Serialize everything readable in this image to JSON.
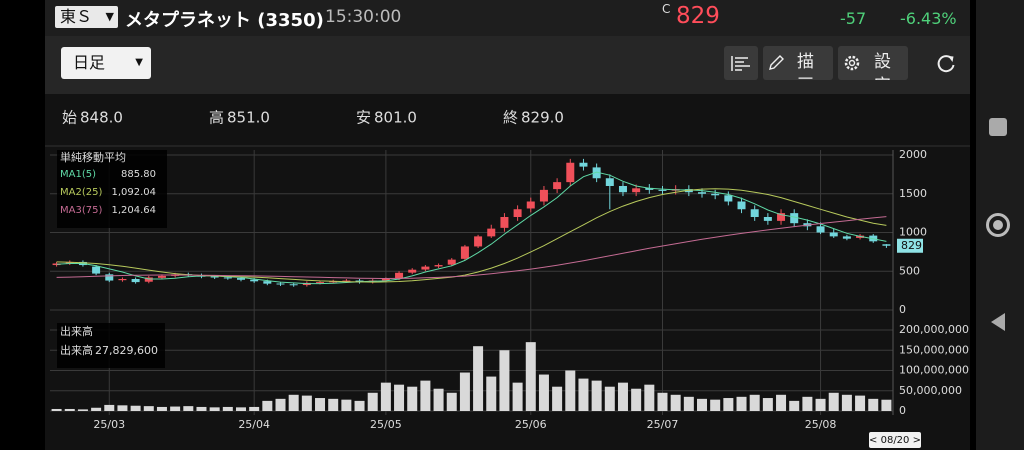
{
  "header": {
    "exchange": "東Ｓ",
    "name": "メタプラネット (3350)",
    "time": "15:30:00",
    "price_flag": "C",
    "price": "829",
    "change": "-57",
    "change_pct": "-6.43%"
  },
  "toolbar": {
    "period": "日足",
    "draw": "描画",
    "settings": "設定"
  },
  "chart_data": {
    "type": "candlestick",
    "ohlc": {
      "labels": [
        "始",
        "高",
        "安",
        "終"
      ],
      "values": [
        848,
        851,
        801,
        829
      ],
      "value_labels": [
        "848.0",
        "851.0",
        "801.0",
        "829.0"
      ]
    },
    "categories": [
      null,
      null,
      null,
      null,
      "25/03",
      null,
      null,
      null,
      null,
      null,
      null,
      null,
      null,
      null,
      null,
      "25/04",
      null,
      null,
      null,
      null,
      null,
      null,
      null,
      null,
      null,
      "25/05",
      null,
      null,
      null,
      null,
      null,
      null,
      null,
      null,
      null,
      null,
      "25/06",
      null,
      null,
      null,
      null,
      null,
      null,
      null,
      null,
      null,
      "25/07",
      null,
      null,
      null,
      null,
      null,
      null,
      null,
      null,
      null,
      null,
      null,
      "25/08",
      null,
      null,
      null,
      null,
      null
    ],
    "open": [
      580,
      600,
      620,
      560,
      460,
      385,
      400,
      365,
      415,
      440,
      462,
      450,
      432,
      420,
      412,
      392,
      372,
      342,
      332,
      322,
      350,
      362,
      372,
      380,
      362,
      382,
      405,
      482,
      522,
      562,
      585,
      660,
      820,
      950,
      1060,
      1200,
      1310,
      1400,
      1560,
      1650,
      1900,
      1840,
      1700,
      1600,
      1520,
      1575,
      1550,
      1540,
      1560,
      1520,
      1500,
      1480,
      1400,
      1300,
      1200,
      1150,
      1250,
      1120,
      1080,
      1000,
      950,
      930,
      960,
      848
    ],
    "high": [
      620,
      640,
      640,
      580,
      480,
      420,
      420,
      440,
      460,
      480,
      482,
      470,
      452,
      440,
      432,
      412,
      392,
      362,
      352,
      370,
      380,
      390,
      400,
      400,
      400,
      420,
      500,
      540,
      580,
      600,
      670,
      840,
      970,
      1100,
      1250,
      1350,
      1450,
      1600,
      1700,
      1950,
      1950,
      1890,
      1750,
      1650,
      1620,
      1625,
      1600,
      1610,
      1610,
      1570,
      1550,
      1530,
      1450,
      1350,
      1250,
      1300,
      1300,
      1170,
      1130,
      1050,
      970,
      980,
      980,
      851
    ],
    "low": [
      560,
      580,
      560,
      450,
      360,
      365,
      340,
      345,
      395,
      420,
      430,
      410,
      400,
      390,
      370,
      350,
      320,
      310,
      300,
      302,
      330,
      342,
      352,
      340,
      342,
      362,
      385,
      462,
      502,
      542,
      565,
      640,
      800,
      930,
      1010,
      1150,
      1260,
      1350,
      1510,
      1600,
      1800,
      1650,
      1300,
      1470,
      1470,
      1500,
      1490,
      1490,
      1470,
      1450,
      1430,
      1350,
      1250,
      1150,
      1100,
      1100,
      1070,
      1030,
      980,
      930,
      900,
      910,
      866,
      801
    ],
    "close": [
      600,
      620,
      580,
      470,
      380,
      400,
      360,
      420,
      440,
      460,
      450,
      430,
      420,
      410,
      390,
      370,
      340,
      330,
      320,
      350,
      360,
      370,
      380,
      360,
      380,
      400,
      480,
      520,
      560,
      580,
      650,
      820,
      950,
      1050,
      1200,
      1300,
      1400,
      1550,
      1650,
      1900,
      1850,
      1700,
      1600,
      1520,
      1570,
      1550,
      1540,
      1560,
      1520,
      1500,
      1480,
      1400,
      1300,
      1200,
      1150,
      1250,
      1120,
      1080,
      1000,
      950,
      920,
      960,
      886,
      829
    ],
    "volume": [
      5000000,
      5000000,
      4000000,
      8000000,
      15000000,
      14000000,
      13000000,
      12000000,
      10000000,
      11000000,
      12000000,
      10000000,
      9000000,
      10000000,
      9000000,
      10000000,
      25000000,
      30000000,
      40000000,
      38000000,
      32000000,
      30000000,
      28000000,
      25000000,
      45000000,
      70000000,
      65000000,
      60000000,
      75000000,
      55000000,
      45000000,
      95000000,
      160000000,
      85000000,
      150000000,
      70000000,
      170000000,
      90000000,
      60000000,
      100000000,
      80000000,
      75000000,
      60000000,
      70000000,
      55000000,
      65000000,
      45000000,
      40000000,
      35000000,
      30000000,
      28000000,
      32000000,
      35000000,
      40000000,
      32000000,
      40000000,
      25000000,
      35000000,
      30000000,
      45000000,
      40000000,
      38000000,
      30000000,
      27829600
    ],
    "up_color": "#f0505a",
    "down_color": "#72d6dc",
    "volume_color": "#d9d9d9",
    "ylim": [
      0,
      2000
    ],
    "yticks": [
      0,
      500,
      1000,
      1500,
      2000
    ],
    "ma_title": "単純移動平均",
    "series": [
      {
        "name": "MA1(5)",
        "color": "#5fd9a6",
        "current": {
          "value": 885.8,
          "label": "885.80"
        },
        "values": [
          590,
          600,
          600,
          570,
          530,
          490,
          440,
          400,
          400,
          410,
          430,
          440,
          440,
          430,
          420,
          400,
          380,
          360,
          350,
          340,
          340,
          345,
          355,
          365,
          370,
          375,
          400,
          440,
          490,
          530,
          570,
          640,
          740,
          850,
          980,
          1100,
          1220,
          1330,
          1450,
          1600,
          1720,
          1780,
          1740,
          1660,
          1600,
          1570,
          1560,
          1550,
          1550,
          1540,
          1520,
          1490,
          1440,
          1370,
          1290,
          1230,
          1200,
          1160,
          1110,
          1050,
          990,
          950,
          920,
          885.8
        ]
      },
      {
        "name": "MA2(25)",
        "color": "#b7c95c",
        "current": {
          "value": 1092.04,
          "label": "1,092.04"
        },
        "values": [
          620,
          615,
          610,
          600,
          585,
          565,
          540,
          515,
          490,
          470,
          455,
          445,
          440,
          435,
          430,
          425,
          415,
          405,
          395,
          385,
          375,
          370,
          365,
          362,
          360,
          362,
          368,
          378,
          392,
          408,
          425,
          450,
          490,
          540,
          600,
          670,
          750,
          830,
          920,
          1010,
          1100,
          1190,
          1270,
          1340,
          1400,
          1450,
          1490,
          1520,
          1545,
          1560,
          1565,
          1560,
          1545,
          1520,
          1490,
          1450,
          1400,
          1350,
          1300,
          1250,
          1200,
          1160,
          1120,
          1092.04
        ]
      },
      {
        "name": "MA3(75)",
        "color": "#c46b93",
        "current": {
          "value": 1204.64,
          "label": "1,204.64"
        },
        "values": [
          420,
          425,
          430,
          435,
          440,
          445,
          448,
          450,
          452,
          452,
          450,
          448,
          446,
          444,
          442,
          440,
          437,
          434,
          430,
          426,
          422,
          418,
          414,
          410,
          408,
          407,
          408,
          410,
          415,
          420,
          428,
          438,
          452,
          468,
          486,
          506,
          528,
          552,
          578,
          606,
          636,
          668,
          700,
          732,
          764,
          796,
          826,
          856,
          884,
          912,
          938,
          964,
          988,
          1012,
          1034,
          1056,
          1076,
          1096,
          1116,
          1134,
          1152,
          1170,
          1188,
          1204.64
        ]
      }
    ],
    "volume_title": "出来高",
    "volume_legend": {
      "name": "出来高",
      "current": {
        "value": 27829600,
        "label": "27,829,600"
      }
    },
    "volume_ylim": [
      0,
      200000000
    ],
    "volume_yticks": [
      0,
      {
        "value": 50000000,
        "label": "50,000,000"
      },
      {
        "value": 100000000,
        "label": "100,000,000"
      },
      {
        "value": 150000000,
        "label": "150,000,000"
      },
      {
        "value": 200000000,
        "label": "200,000,000"
      }
    ],
    "selected_date": "< 08/20 >"
  }
}
